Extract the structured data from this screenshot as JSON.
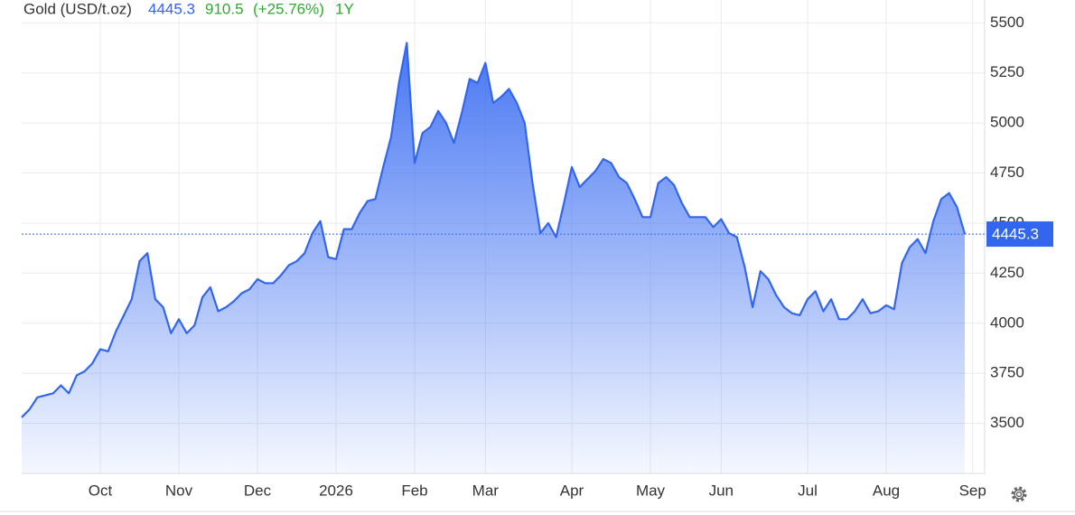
{
  "chart_data": {
    "type": "line",
    "title": "Gold (USD/t.oz)",
    "change": "910.5",
    "change_pct": "(+25.76%)",
    "period": "1Y",
    "categories": [
      null,
      null,
      null,
      null,
      null,
      null,
      null,
      null,
      null,
      null,
      "Oct",
      null,
      null,
      null,
      null,
      null,
      null,
      null,
      null,
      null,
      "Nov",
      null,
      null,
      null,
      null,
      null,
      null,
      null,
      null,
      null,
      "Dec",
      null,
      null,
      null,
      null,
      null,
      null,
      null,
      null,
      null,
      "2026",
      null,
      null,
      null,
      null,
      null,
      null,
      null,
      null,
      null,
      "Feb",
      null,
      null,
      null,
      null,
      null,
      null,
      null,
      null,
      "Mar",
      null,
      null,
      null,
      null,
      null,
      null,
      null,
      null,
      null,
      null,
      "Apr",
      null,
      null,
      null,
      null,
      null,
      null,
      null,
      null,
      null,
      "May",
      null,
      null,
      null,
      null,
      null,
      null,
      null,
      null,
      "Jun",
      null,
      null,
      null,
      null,
      null,
      null,
      null,
      null,
      null,
      null,
      "Jul",
      null,
      null,
      null,
      null,
      null,
      null,
      null,
      null,
      null,
      "Aug",
      null,
      null,
      null,
      null,
      null,
      null,
      null,
      null,
      null,
      null,
      "Sep"
    ],
    "series": [
      {
        "name": "Gold",
        "color": "#3366ee",
        "values": [
          3530,
          3570,
          3630,
          3640,
          3650,
          3690,
          3650,
          3740,
          3760,
          3800,
          3870,
          3860,
          3960,
          4040,
          4120,
          4310,
          4350,
          4120,
          4080,
          3950,
          4020,
          3950,
          3990,
          4130,
          4180,
          4060,
          4080,
          4110,
          4150,
          4170,
          4220,
          4200,
          4200,
          4240,
          4290,
          4310,
          4350,
          4450,
          4510,
          4330,
          4320,
          4470,
          4470,
          4550,
          4610,
          4620,
          4780,
          4930,
          5200,
          5400,
          4800,
          4950,
          4980,
          5060,
          5000,
          4900,
          5050,
          5220,
          5200,
          5300,
          5100,
          5130,
          5170,
          5100,
          5000,
          4700,
          4450,
          4500,
          4430,
          4600,
          4780,
          4680,
          4720,
          4760,
          4820,
          4800,
          4730,
          4700,
          4620,
          4530,
          4530,
          4700,
          4730,
          4690,
          4600,
          4530,
          4530,
          4530,
          4480,
          4520,
          4450,
          4430,
          4280,
          4080,
          4260,
          4220,
          4140,
          4080,
          4050,
          4040,
          4120,
          4160,
          4060,
          4120,
          4020,
          4020,
          4060,
          4120,
          4050,
          4060,
          4090,
          4070,
          4300,
          4380,
          4420,
          4350,
          4510,
          4620,
          4650,
          4580,
          4445.3,
          null
        ]
      }
    ],
    "ylim": [
      3250,
      5560
    ],
    "yticks": [
      3500,
      3750,
      4000,
      4250,
      4500,
      4750,
      5000,
      5250,
      5500
    ],
    "grid": true
  }
}
